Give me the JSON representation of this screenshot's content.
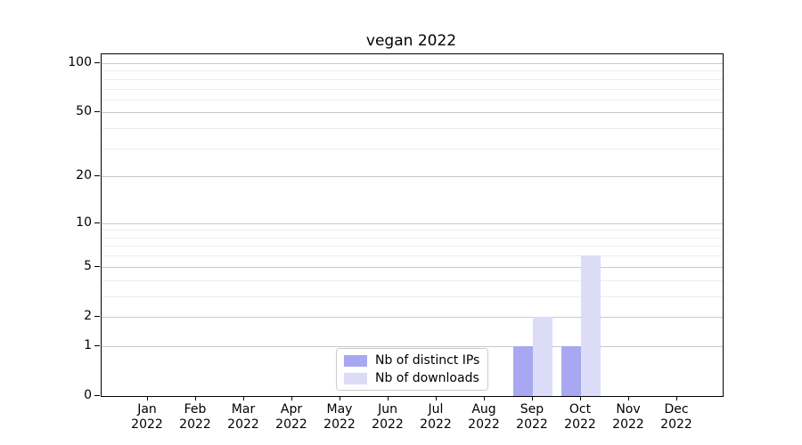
{
  "chart_data": {
    "type": "bar",
    "title": "vegan 2022",
    "months": [
      "Jan",
      "Feb",
      "Mar",
      "Apr",
      "May",
      "Jun",
      "Jul",
      "Aug",
      "Sep",
      "Oct",
      "Nov",
      "Dec"
    ],
    "year_label": "2022",
    "series": [
      {
        "name": "Nb of distinct IPs",
        "color": "#a8a8f2",
        "values": [
          0,
          0,
          0,
          0,
          0,
          0,
          0,
          0,
          1,
          1,
          0,
          0
        ]
      },
      {
        "name": "Nb of downloads",
        "color": "#dcdcf8",
        "values": [
          0,
          0,
          0,
          0,
          0,
          0,
          0,
          0,
          2,
          6,
          0,
          0
        ]
      }
    ],
    "y_ticks": [
      0,
      1,
      2,
      5,
      10,
      20,
      50,
      100
    ],
    "y_minor_ticks": [
      3,
      4,
      6,
      7,
      8,
      9,
      30,
      40,
      60,
      70,
      80,
      90
    ],
    "y_scale": "log1p",
    "ylim": [
      0,
      113
    ],
    "grid": "on",
    "legend_position": "lower center",
    "colors": {
      "grid_major": "#c9c9c9",
      "grid_minor": "#ededed",
      "spine": "#000000",
      "legend_border": "#cccccc",
      "background": "#ffffff"
    }
  }
}
